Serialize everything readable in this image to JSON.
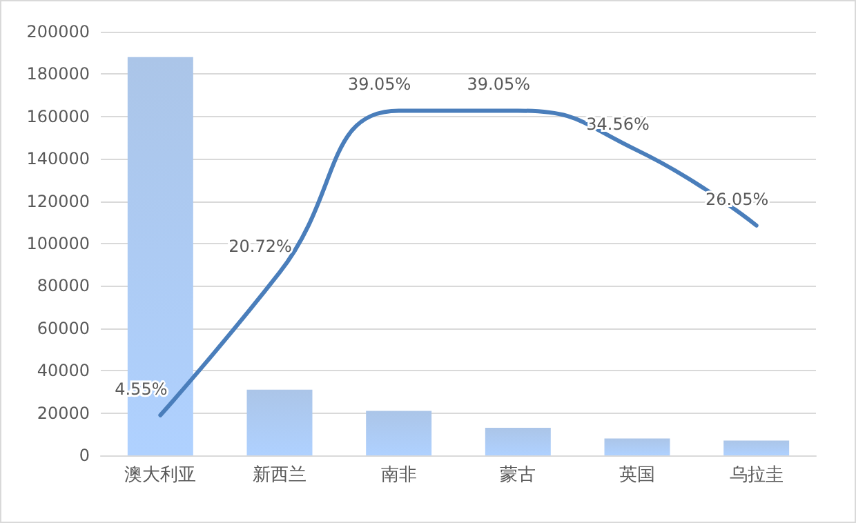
{
  "chart_data": {
    "type": "bar",
    "categories": [
      "澳大利亚",
      "新西兰",
      "南非",
      "蒙古",
      "英国",
      "乌拉圭"
    ],
    "series": [
      {
        "color": "#9dbbe5",
        "values": [
          188000,
          31000,
          21000,
          13000,
          8000,
          7000
        ]
      },
      {
        "type": "line",
        "axis": "y2",
        "color": "#4a7ebb",
        "values": [
          4.55,
          20.72,
          39.05,
          39.05,
          34.56,
          26.05
        ],
        "value_labels": [
          "4.55%",
          "20.72%",
          "39.05%",
          "39.05%",
          "34.56%",
          "26.05%"
        ]
      }
    ],
    "ylim": [
      0,
      200000
    ],
    "yticks": [
      0,
      20000,
      40000,
      60000,
      80000,
      100000,
      120000,
      140000,
      160000,
      180000,
      200000
    ],
    "y2lim": [
      0,
      48
    ],
    "tick_labels": "y",
    "grid": "y",
    "marker": "none"
  }
}
